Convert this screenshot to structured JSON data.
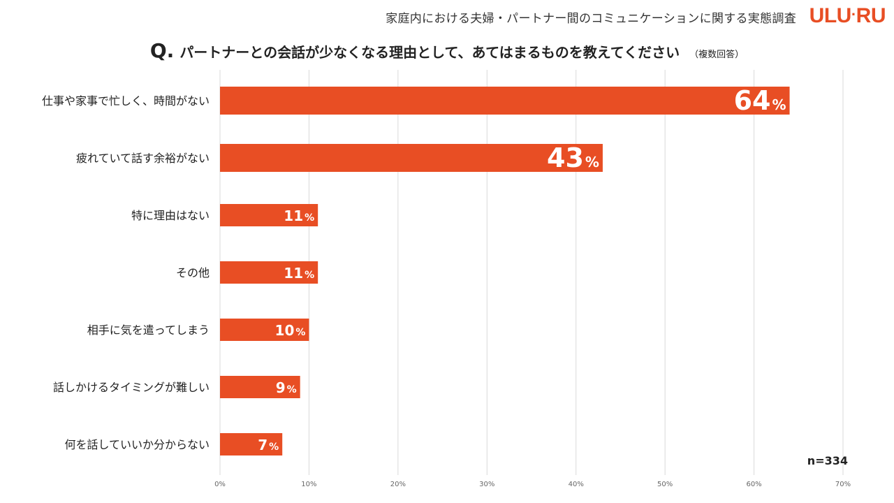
{
  "header": {
    "survey_title": "家庭内における夫婦・パートナー間のコミュニケーションに関する実態調査",
    "logo": {
      "part1": "ULU",
      "part2": "RU"
    }
  },
  "question": {
    "mark": "Q.",
    "text": "パートナーとの会話が少なくなる理由として、あてはまるものを教えてください",
    "note": "（複数回答）"
  },
  "sample": {
    "label": "n=334"
  },
  "colors": {
    "bar": "#E84E24",
    "brand": "#E84E24",
    "grid": "#D9D9D9"
  },
  "chart_data": {
    "type": "bar",
    "orientation": "horizontal",
    "categories": [
      "仕事や家事で忙しく、時間がない",
      "疲れていて話す余裕がない",
      "特に理由はない",
      "その他",
      "相手に気を遣ってしまう",
      "話しかけるタイミングが難しい",
      "何を話していいか分からない"
    ],
    "values": [
      64,
      43,
      11,
      11,
      10,
      9,
      7
    ],
    "value_suffix": "%",
    "xlim": [
      0,
      70
    ],
    "ticks": [
      0,
      10,
      20,
      30,
      40,
      50,
      60,
      70
    ],
    "tick_labels": [
      "0%",
      "10%",
      "20%",
      "30%",
      "40%",
      "50%",
      "60%",
      "70%"
    ],
    "grid": true
  }
}
